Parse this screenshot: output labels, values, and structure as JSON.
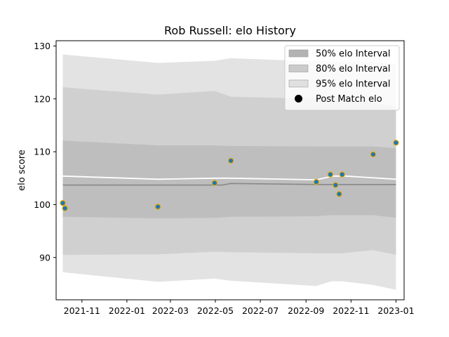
{
  "chart_data": {
    "type": "line",
    "title": "Rob Russell: elo History",
    "xlabel": "",
    "ylabel": "elo score",
    "xlim": [
      "2021-09-27",
      "2023-01-12"
    ],
    "ylim": [
      82,
      131
    ],
    "x_ticks": [
      "2021-11",
      "2022-01",
      "2022-03",
      "2022-05",
      "2022-07",
      "2022-09",
      "2022-11",
      "2023-01"
    ],
    "y_ticks": [
      90,
      100,
      110,
      120,
      130
    ],
    "grid": false,
    "legend_position": "top-right",
    "bands": [
      {
        "name": "95% elo Interval",
        "color": "#e3e3e3",
        "x": [
          "2021-10-06",
          "2022-02-12",
          "2022-04-30",
          "2022-05-22",
          "2022-09-15",
          "2022-10-05",
          "2022-10-20",
          "2022-12-01",
          "2023-01-01"
        ],
        "upper": [
          128.4,
          126.8,
          127.2,
          127.7,
          127.1,
          127.0,
          127.0,
          126.9,
          126.6
        ],
        "lower": [
          87.2,
          85.4,
          86.0,
          85.6,
          84.6,
          85.5,
          85.5,
          84.8,
          83.9
        ]
      },
      {
        "name": "80% elo Interval",
        "color": "#d0d0d0",
        "x": [
          "2021-10-06",
          "2022-02-12",
          "2022-04-30",
          "2022-05-22",
          "2022-09-15",
          "2022-10-05",
          "2022-10-20",
          "2022-12-01",
          "2023-01-01"
        ],
        "upper": [
          122.2,
          120.8,
          121.5,
          120.4,
          120.0,
          120.2,
          120.2,
          119.3,
          118.5
        ],
        "lower": [
          90.5,
          90.6,
          91.1,
          91.0,
          90.8,
          90.8,
          90.8,
          91.4,
          90.5
        ]
      },
      {
        "name": "50% elo Interval",
        "color": "#bebebe",
        "x": [
          "2021-10-06",
          "2022-02-12",
          "2022-04-30",
          "2022-05-22",
          "2022-09-15",
          "2022-10-05",
          "2022-10-20",
          "2022-12-01",
          "2023-01-01"
        ],
        "upper": [
          112.1,
          111.2,
          111.2,
          111.1,
          111.0,
          111.0,
          111.0,
          111.0,
          110.7
        ],
        "lower": [
          97.7,
          97.4,
          97.5,
          97.7,
          97.8,
          98.0,
          98.0,
          98.0,
          97.5
        ]
      }
    ],
    "series": [
      {
        "name": "",
        "role": "median",
        "color": "#888888",
        "x": [
          "2021-10-06",
          "2022-05-10",
          "2022-05-22",
          "2022-09-15",
          "2023-01-01"
        ],
        "values": [
          103.7,
          103.7,
          104.0,
          103.8,
          103.8
        ]
      },
      {
        "name": "",
        "role": "mean",
        "color": "#ffffff",
        "x": [
          "2021-10-06",
          "2022-02-12",
          "2022-04-30",
          "2022-05-22",
          "2022-09-15",
          "2022-10-08",
          "2022-10-25",
          "2023-01-01"
        ],
        "values": [
          105.4,
          104.8,
          105.0,
          105.0,
          104.7,
          105.4,
          105.4,
          104.8
        ]
      },
      {
        "name": "Post Match elo",
        "role": "points",
        "color": "#1f77b4",
        "edge_color": "#e8a800",
        "x": [
          "2021-10-06",
          "2021-10-09",
          "2022-02-12",
          "2022-04-30",
          "2022-05-22",
          "2022-09-15",
          "2022-10-04",
          "2022-10-11",
          "2022-10-16",
          "2022-10-20",
          "2022-12-01",
          "2023-01-01"
        ],
        "values": [
          100.3,
          99.3,
          99.6,
          104.1,
          108.3,
          104.3,
          105.7,
          103.7,
          102.0,
          105.7,
          109.5,
          111.7
        ]
      }
    ],
    "legend": [
      {
        "label": "50% elo Interval",
        "kind": "patch",
        "color": "#b3b3b3"
      },
      {
        "label": "80% elo Interval",
        "kind": "patch",
        "color": "#cbcbcb"
      },
      {
        "label": "95% elo Interval",
        "kind": "patch",
        "color": "#e0e0e0"
      },
      {
        "label": "Post Match elo",
        "kind": "marker",
        "color": "#000000"
      }
    ]
  }
}
